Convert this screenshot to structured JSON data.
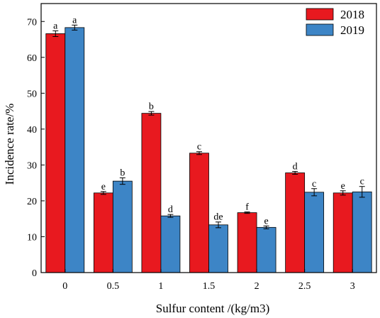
{
  "chart_data": {
    "type": "bar",
    "xlabel": "Sulfur content /(kg/m3)",
    "ylabel": "Incidence rate/%",
    "categories": [
      "0",
      "0.5",
      "1",
      "1.5",
      "2",
      "2.5",
      "3"
    ],
    "ylim": [
      0,
      75
    ],
    "yticks": [
      0,
      10,
      20,
      30,
      40,
      50,
      60,
      70
    ],
    "legend_position": "top-right",
    "grid": false,
    "series": [
      {
        "name": "2018",
        "color": "#e8191f",
        "values": [
          66.6,
          22.2,
          44.4,
          33.3,
          16.7,
          27.8,
          22.2
        ],
        "errors": [
          0.8,
          0.4,
          0.5,
          0.4,
          0.2,
          0.4,
          0.6
        ],
        "letters": [
          "a",
          "e",
          "b",
          "c",
          "f",
          "d",
          "e"
        ]
      },
      {
        "name": "2019",
        "color": "#3d85c6",
        "values": [
          68.3,
          25.5,
          15.8,
          13.3,
          12.6,
          22.4,
          22.5
        ],
        "errors": [
          0.7,
          0.9,
          0.4,
          0.8,
          0.4,
          1.0,
          1.5
        ],
        "letters": [
          "a",
          "b",
          "d",
          "de",
          "e",
          "c",
          "c"
        ]
      }
    ]
  }
}
